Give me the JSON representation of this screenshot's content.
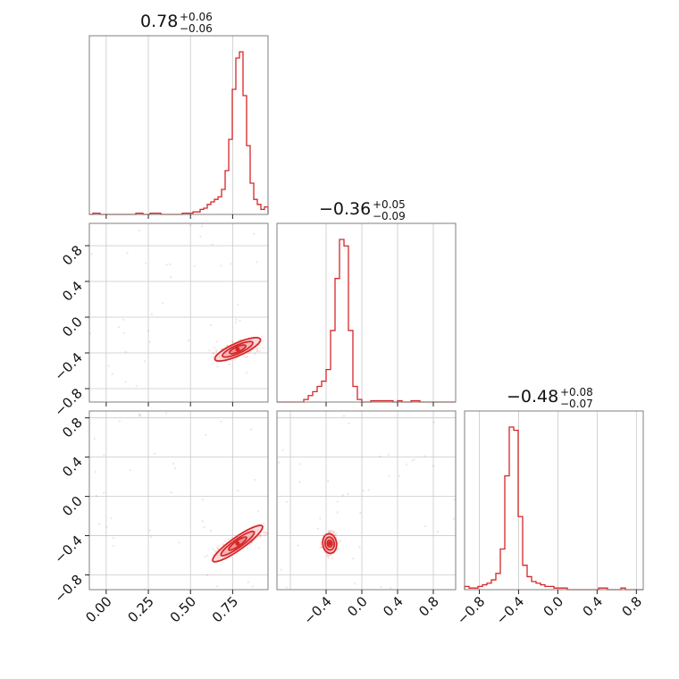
{
  "chart_data": {
    "type": "corner",
    "color": "#d62728",
    "fill_color": "#f4b5b8",
    "grid": true,
    "params": [
      {
        "median": "0.78",
        "plus": "+0.06",
        "minus": "−0.06",
        "range": [
          -0.1,
          0.96
        ],
        "ticks": [
          0.0,
          0.25,
          0.5,
          0.75
        ],
        "tick_labels": [
          "0.00",
          "0.25",
          "0.50",
          "0.75"
        ]
      },
      {
        "median": "−0.36",
        "plus": "+0.05",
        "minus": "−0.09",
        "range": [
          -0.95,
          1.05
        ],
        "ticks": [
          -0.8,
          -0.4,
          0.0,
          0.4,
          0.8
        ],
        "tick_labels": [
          "−0.8",
          "−0.4",
          "0.0",
          "0.4",
          "0.8"
        ],
        "x_ticks": [
          -0.4,
          0.0,
          0.4,
          0.8
        ],
        "x_tick_labels": [
          "−0.4",
          "0.0",
          "0.4",
          "0.8"
        ]
      },
      {
        "median": "−0.48",
        "plus": "+0.08",
        "minus": "−0.07",
        "range": [
          -0.95,
          0.87
        ],
        "ticks": [
          -0.8,
          -0.4,
          0.0,
          0.4,
          0.8
        ],
        "tick_labels": [
          "−0.8",
          "−0.4",
          "0.0",
          "0.4",
          "0.8"
        ]
      }
    ],
    "histograms": [
      {
        "bins": [
          -0.1,
          0.96
        ],
        "counts": [
          0,
          1,
          1,
          0,
          0,
          0,
          0,
          0,
          0,
          0,
          0,
          0,
          0,
          1,
          1,
          0,
          0,
          1,
          1,
          1,
          0,
          0,
          0,
          0,
          0,
          0,
          1,
          1,
          1,
          2,
          2,
          4,
          5,
          8,
          10,
          12,
          14,
          20,
          35,
          60,
          100,
          125,
          130,
          95,
          55,
          25,
          12,
          8,
          4,
          6
        ]
      },
      {
        "bins": [
          -0.95,
          1.05
        ],
        "counts": [
          0,
          0,
          0,
          0,
          0,
          0,
          2,
          5,
          8,
          12,
          16,
          25,
          55,
          95,
          125,
          120,
          55,
          12,
          2,
          0,
          0,
          1,
          1,
          1,
          1,
          1,
          0,
          1,
          0,
          0,
          1,
          1,
          0,
          0,
          0,
          0,
          0,
          0,
          0,
          0
        ]
      },
      {
        "bins": [
          -0.95,
          0.87
        ],
        "counts": [
          2,
          1,
          1,
          2,
          3,
          4,
          6,
          10,
          25,
          70,
          100,
          98,
          45,
          15,
          8,
          5,
          4,
          3,
          2,
          2,
          1,
          1,
          1,
          0,
          0,
          0,
          0,
          0,
          0,
          0,
          1,
          1,
          0,
          0,
          0,
          1,
          0,
          0,
          0,
          0
        ]
      }
    ],
    "pairs": [
      {
        "x_param": 0,
        "y_param": 1,
        "center": [
          0.78,
          -0.36
        ]
      },
      {
        "x_param": 0,
        "y_param": 2,
        "center": [
          0.78,
          -0.48
        ]
      },
      {
        "x_param": 1,
        "y_param": 2,
        "center": [
          -0.36,
          -0.48
        ]
      }
    ]
  }
}
